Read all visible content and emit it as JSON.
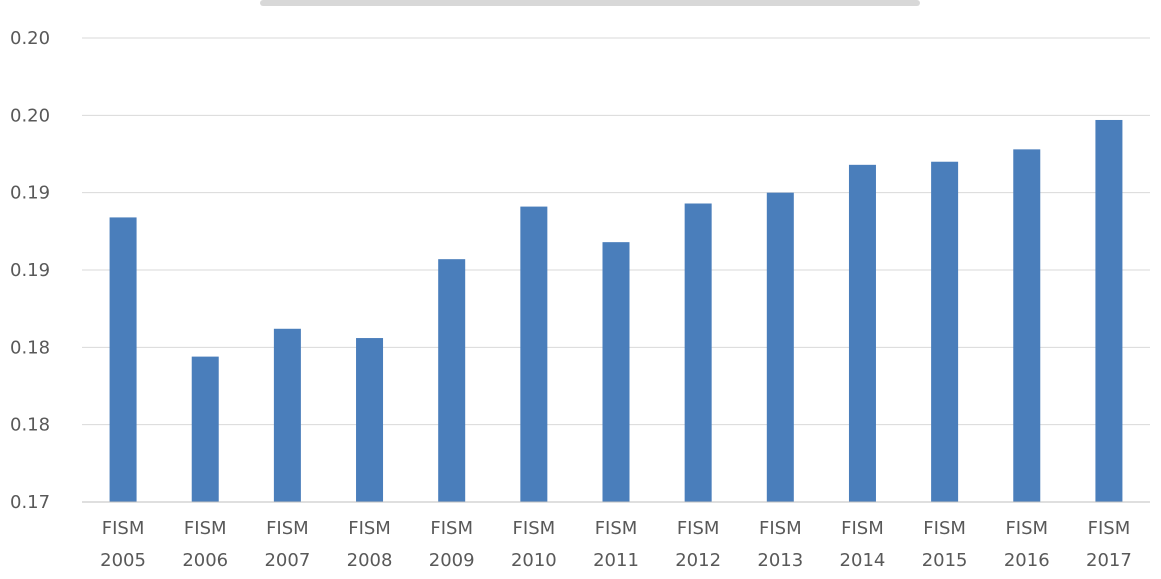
{
  "chart_data": {
    "type": "bar",
    "title": "",
    "xlabel": "",
    "ylabel": "",
    "categories": [
      [
        "FISM",
        "2005"
      ],
      [
        "FISM",
        "2006"
      ],
      [
        "FISM",
        "2007"
      ],
      [
        "FISM",
        "2008"
      ],
      [
        "FISM",
        "2009"
      ],
      [
        "FISM",
        "2010"
      ],
      [
        "FISM",
        "2011"
      ],
      [
        "FISM",
        "2012"
      ],
      [
        "FISM",
        "2013"
      ],
      [
        "FISM",
        "2014"
      ],
      [
        "FISM",
        "2015"
      ],
      [
        "FISM",
        "2016"
      ],
      [
        "FISM",
        "2017"
      ]
    ],
    "values": [
      0.1884,
      0.1794,
      0.1812,
      0.1806,
      0.1857,
      0.1891,
      0.1868,
      0.1893,
      0.19,
      0.1918,
      0.192,
      0.1928,
      0.1947
    ],
    "ylim": [
      0.17,
      0.2
    ],
    "y_ticks": [
      "0.17",
      "0.18",
      "0.18",
      "0.19",
      "0.19",
      "0.20",
      "0.20"
    ],
    "grid": true,
    "color": "#4a7ebb"
  }
}
